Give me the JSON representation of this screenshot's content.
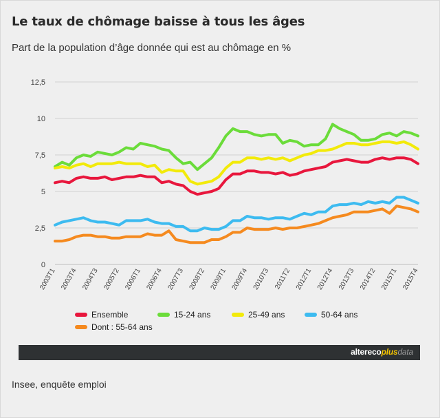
{
  "title": "Le taux de chômage baisse à tous les âges",
  "subtitle": "Part de la population d’âge donnée qui est au chômage en %",
  "source": "Insee, enquête emploi",
  "brand": {
    "part1": "altereco",
    "part2": "plus",
    "part3": "data"
  },
  "chart_data": {
    "type": "line",
    "ylim": [
      0,
      12.5
    ],
    "yticks": [
      "0",
      "2,5",
      "5",
      "7,5",
      "10",
      "12,5"
    ],
    "grid": "horizontal",
    "legend_position": "bottom",
    "x": [
      "2003T1",
      "2003T2",
      "2003T3",
      "2003T4",
      "2004T1",
      "2004T2",
      "2004T3",
      "2004T4",
      "2005T1",
      "2005T2",
      "2005T3",
      "2005T4",
      "2006T1",
      "2006T2",
      "2006T3",
      "2006T4",
      "2007T1",
      "2007T2",
      "2007T3",
      "2007T4",
      "2008T1",
      "2008T2",
      "2008T3",
      "2008T4",
      "2009T1",
      "2009T2",
      "2009T3",
      "2009T4",
      "2010T1",
      "2010T2",
      "2010T3",
      "2010T4",
      "2011T1",
      "2011T2",
      "2011T3",
      "2011T4",
      "2012T1",
      "2012T2",
      "2012T3",
      "2012T4",
      "2013T1",
      "2013T2",
      "2013T3",
      "2013T4",
      "2014T1",
      "2014T2",
      "2014T3",
      "2014T4",
      "2015T1",
      "2015T2",
      "2015T3",
      "2015T4"
    ],
    "xtick_labels": [
      "2003T1",
      "2003T4",
      "2004T3",
      "2005T2",
      "2006T1",
      "2006T4",
      "2007T3",
      "2008T2",
      "2009T1",
      "2009T4",
      "2010T3",
      "2011T2",
      "2012T1",
      "2012T4",
      "2013T3",
      "2014T2",
      "2015T1",
      "2015T4"
    ],
    "series": [
      {
        "name": "Ensemble",
        "color": "#e8173d",
        "values": [
          5.6,
          5.7,
          5.6,
          5.9,
          6.0,
          5.9,
          5.9,
          6.0,
          5.8,
          5.9,
          6.0,
          6.0,
          6.1,
          6.0,
          6.0,
          5.6,
          5.7,
          5.5,
          5.4,
          5.0,
          4.8,
          4.9,
          5.0,
          5.2,
          5.8,
          6.2,
          6.2,
          6.4,
          6.4,
          6.3,
          6.3,
          6.2,
          6.3,
          6.1,
          6.2,
          6.4,
          6.5,
          6.6,
          6.7,
          7.0,
          7.1,
          7.2,
          7.1,
          7.0,
          7.0,
          7.2,
          7.3,
          7.2,
          7.3,
          7.3,
          7.2,
          6.9
        ]
      },
      {
        "name": "15-24 ans",
        "color": "#6bdc3a",
        "values": [
          6.7,
          7.0,
          6.8,
          7.3,
          7.5,
          7.4,
          7.7,
          7.6,
          7.5,
          7.7,
          8.0,
          7.9,
          8.3,
          8.2,
          8.1,
          7.9,
          7.8,
          7.3,
          6.9,
          7.0,
          6.5,
          6.9,
          7.3,
          8.0,
          8.8,
          9.3,
          9.1,
          9.1,
          8.9,
          8.8,
          8.9,
          8.9,
          8.3,
          8.5,
          8.4,
          8.1,
          8.2,
          8.2,
          8.6,
          9.6,
          9.3,
          9.1,
          8.9,
          8.5,
          8.5,
          8.6,
          8.9,
          9.0,
          8.8,
          9.1,
          9.0,
          8.8
        ]
      },
      {
        "name": "25-49 ans",
        "color": "#f2ea0a",
        "values": [
          6.6,
          6.7,
          6.6,
          6.8,
          6.9,
          6.7,
          6.9,
          6.9,
          6.9,
          7.0,
          6.9,
          6.9,
          6.9,
          6.7,
          6.8,
          6.3,
          6.5,
          6.4,
          6.4,
          5.7,
          5.5,
          5.6,
          5.7,
          6.0,
          6.6,
          7.0,
          7.0,
          7.3,
          7.3,
          7.2,
          7.3,
          7.2,
          7.3,
          7.1,
          7.3,
          7.5,
          7.6,
          7.8,
          7.8,
          7.9,
          8.1,
          8.3,
          8.3,
          8.2,
          8.2,
          8.3,
          8.4,
          8.4,
          8.3,
          8.4,
          8.2,
          7.9
        ]
      },
      {
        "name": "50-64 ans",
        "color": "#3dbbf0",
        "values": [
          2.7,
          2.9,
          3.0,
          3.1,
          3.2,
          3.0,
          2.9,
          2.9,
          2.8,
          2.7,
          3.0,
          3.0,
          3.0,
          3.1,
          2.9,
          2.8,
          2.8,
          2.6,
          2.6,
          2.3,
          2.3,
          2.5,
          2.4,
          2.4,
          2.6,
          3.0,
          3.0,
          3.3,
          3.2,
          3.2,
          3.1,
          3.2,
          3.2,
          3.1,
          3.3,
          3.5,
          3.4,
          3.6,
          3.6,
          4.0,
          4.1,
          4.1,
          4.2,
          4.1,
          4.3,
          4.2,
          4.3,
          4.2,
          4.6,
          4.6,
          4.4,
          4.2
        ]
      },
      {
        "name": "Dont : 55-64 ans",
        "color": "#f58a1f",
        "values": [
          1.6,
          1.6,
          1.7,
          1.9,
          2.0,
          2.0,
          1.9,
          1.9,
          1.8,
          1.8,
          1.9,
          1.9,
          1.9,
          2.1,
          2.0,
          2.0,
          2.3,
          1.7,
          1.6,
          1.5,
          1.5,
          1.5,
          1.7,
          1.7,
          1.9,
          2.2,
          2.2,
          2.5,
          2.4,
          2.4,
          2.4,
          2.5,
          2.4,
          2.5,
          2.5,
          2.6,
          2.7,
          2.8,
          3.0,
          3.2,
          3.3,
          3.4,
          3.6,
          3.6,
          3.6,
          3.7,
          3.8,
          3.5,
          4.0,
          3.9,
          3.8,
          3.6
        ]
      }
    ]
  }
}
